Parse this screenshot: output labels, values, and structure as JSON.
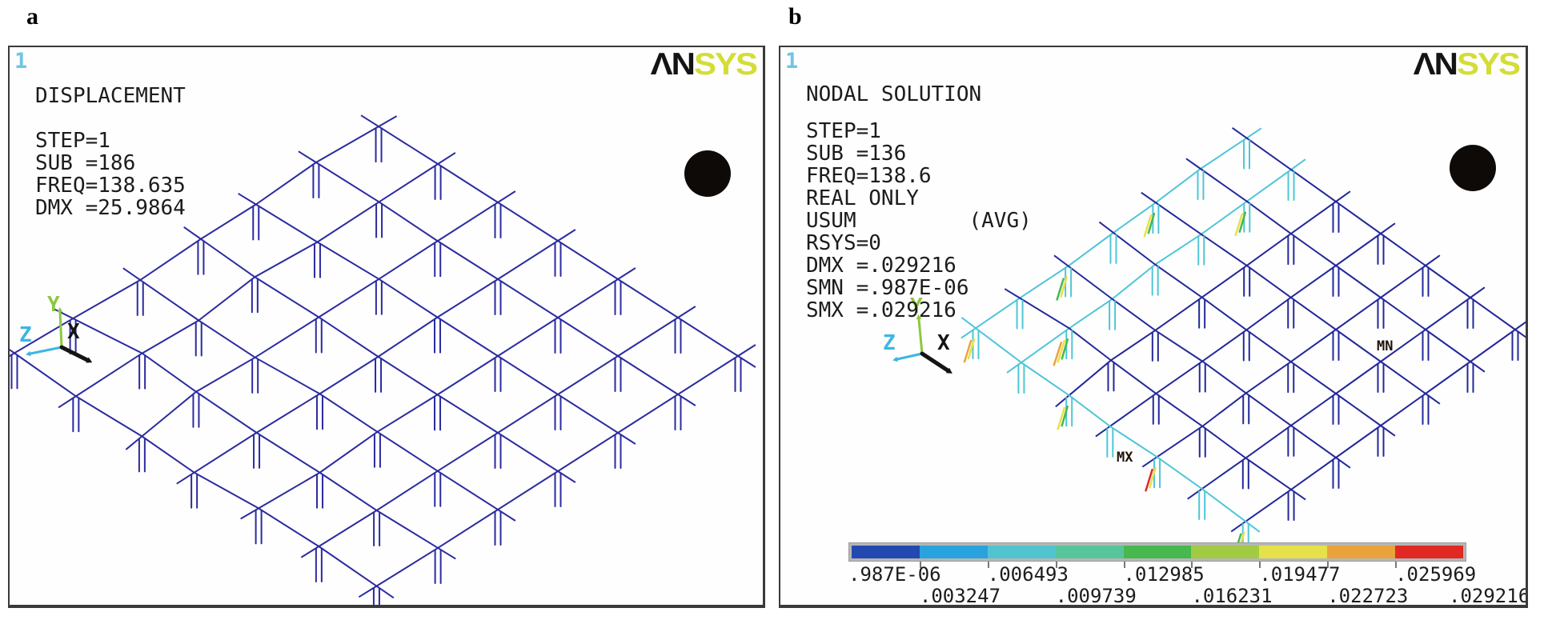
{
  "figure": {
    "panel_a_label": "a",
    "panel_b_label": "b"
  },
  "colors": {
    "mesh_navy": "#2b2ba0",
    "mesh_navy_dark": "#23289a",
    "mesh_cyan": "#4ec6d6",
    "view_number": "#6ec6e4",
    "text": "#1c1c1c",
    "ansys_black": "#141414",
    "ansys_yellow": "#d4dd38",
    "triad_y": "#8cc83e",
    "triad_z": "#3cb6e2",
    "triad_x": "#141414",
    "colorbar_track": "#b6b6b6",
    "accent_green": "#46b84e",
    "accent_yellow": "#e6e14a",
    "accent_orange": "#eaa33c",
    "accent_red": "#e12823"
  },
  "panel_a": {
    "view_number": "1",
    "title": "DISPLACEMENT",
    "info_lines": [
      "STEP=1",
      "SUB =186",
      "FREQ=138.635",
      "DMX =25.9864"
    ],
    "logo": {
      "an": "ΛN",
      "sys": "SYS"
    },
    "triad": {
      "x": "X",
      "y": "Y",
      "z": "Z"
    },
    "mesh": {
      "divisions": 6,
      "cyan_lines_i": [],
      "cyan_lines_j": [],
      "accents": []
    }
  },
  "panel_b": {
    "view_number": "1",
    "title": "NODAL SOLUTION",
    "info_lines": [
      "STEP=1",
      "SUB =136",
      "FREQ=138.6",
      "REAL ONLY",
      "USUM         (AVG)",
      "RSYS=0",
      "DMX =.029216",
      "SMN =.987E-06",
      "SMX =.029216"
    ],
    "logo": {
      "an": "ΛN",
      "sys": "SYS"
    },
    "triad": {
      "x": "X",
      "y": "Y",
      "z": "Z"
    },
    "max_label": "MX",
    "min_label": "MN",
    "mesh": {
      "divisions": 6,
      "cyan_lines_i": [
        0,
        1
      ],
      "cyan_lines_j": [
        6
      ],
      "accents": [
        {
          "i": 1,
          "j": 1,
          "colors": [
            "accent_green",
            "accent_yellow"
          ]
        },
        {
          "i": 0,
          "j": 2,
          "colors": [
            "accent_green",
            "accent_yellow"
          ]
        },
        {
          "i": 0,
          "j": 4,
          "colors": [
            "accent_yellow",
            "accent_green"
          ]
        },
        {
          "i": 0,
          "j": 6,
          "colors": [
            "accent_yellow",
            "accent_orange"
          ]
        },
        {
          "i": 1,
          "j": 5,
          "colors": [
            "accent_green",
            "accent_yellow",
            "accent_orange"
          ]
        },
        {
          "i": 2,
          "j": 6,
          "colors": [
            "accent_green",
            "accent_yellow"
          ]
        },
        {
          "i": 4,
          "j": 6,
          "colors": [
            "accent_yellow",
            "accent_red"
          ]
        },
        {
          "i": 6,
          "j": 6,
          "colors": [
            "accent_yellow",
            "accent_green"
          ]
        }
      ]
    },
    "colorbar": {
      "row1_values": [
        ".987E-06",
        ".006493",
        ".012985",
        ".019477",
        ".025969"
      ],
      "row2_values": [
        ".003247",
        ".009739",
        ".016231",
        ".022723",
        ".029216"
      ],
      "segment_colors": [
        "#2348b0",
        "#29a3dd",
        "#4fc4cf",
        "#57c59b",
        "#46b84e",
        "#a0cb43",
        "#e6e14a",
        "#eaa33c",
        "#e12823"
      ]
    }
  }
}
